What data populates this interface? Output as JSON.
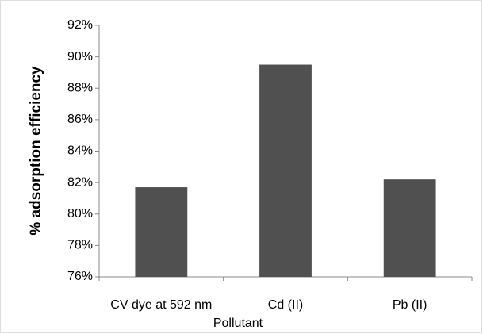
{
  "chart_data": {
    "type": "bar",
    "x_label": "Pollutant",
    "y_label": "% adsorption efficiency",
    "categories": [
      "CV dye at 592 nm",
      "Cd (II)",
      "Pb (II)"
    ],
    "values": [
      81.7,
      89.5,
      82.2
    ],
    "color": "#505050",
    "ylim": [
      76,
      92
    ],
    "yticks": [
      {
        "value": 76,
        "label": "76%"
      },
      {
        "value": 78,
        "label": "78%"
      },
      {
        "value": 80,
        "label": "80%"
      },
      {
        "value": 82,
        "label": "82%"
      },
      {
        "value": 84,
        "label": "84%"
      },
      {
        "value": 86,
        "label": "86%"
      },
      {
        "value": 88,
        "label": "88%"
      },
      {
        "value": 90,
        "label": "90%"
      },
      {
        "value": 92,
        "label": "92%"
      }
    ],
    "grid": false
  }
}
